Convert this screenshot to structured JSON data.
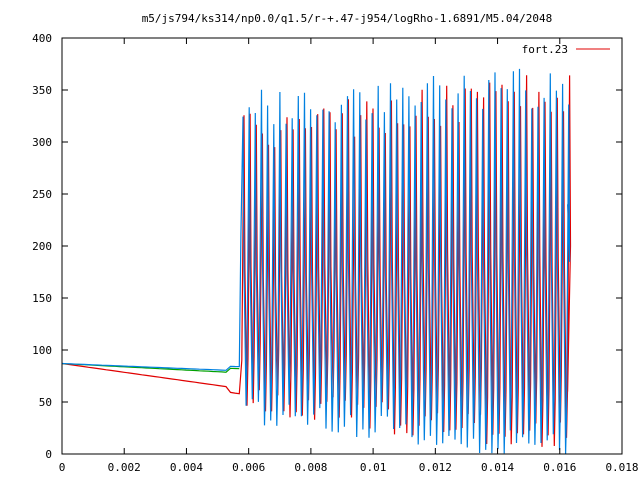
{
  "chart_data": {
    "type": "line",
    "title": "m5/js794/ks314/np0.0/q1.5/r-+.47-j954/logRho-1.6891/M5.04/2048",
    "xlabel": "",
    "ylabel": "",
    "xlim": [
      0,
      0.018
    ],
    "ylim": [
      0,
      400
    ],
    "x_ticks": [
      "0",
      "0.002",
      "0.004",
      "0.006",
      "0.008",
      "0.01",
      "0.012",
      "0.014",
      "0.016",
      "0.018"
    ],
    "x_tick_values": [
      0,
      0.002,
      0.004,
      0.006,
      0.008,
      0.01,
      0.012,
      0.014,
      0.016,
      0.018
    ],
    "y_ticks": [
      "0",
      "50",
      "100",
      "150",
      "200",
      "250",
      "300",
      "350",
      "400"
    ],
    "y_tick_values": [
      0,
      50,
      100,
      150,
      200,
      250,
      300,
      350,
      400
    ],
    "grid": false,
    "legend_position": "top-right",
    "legend": [
      {
        "label": "fort.23",
        "color": "#e00000"
      }
    ],
    "series": [
      {
        "name": "fort.23",
        "color": "#e00000",
        "steady": {
          "x": [
            0,
            0.0057
          ],
          "y": [
            87,
            63
          ]
        },
        "oscillation": {
          "x_start": 0.00575,
          "x_end": 0.01625,
          "period": 0.000395,
          "max_y": [
            310,
            350
          ],
          "min_y": [
            50,
            15
          ]
        }
      },
      {
        "name": "",
        "color": "#00a000",
        "steady": {
          "x": [
            0,
            0.0057
          ],
          "y": [
            87,
            78
          ]
        }
      },
      {
        "name": "",
        "color": "#0080e0",
        "steady": {
          "x": [
            0,
            0.0057
          ],
          "y": [
            87,
            80
          ]
        },
        "oscillation": {
          "x_start": 0.00575,
          "x_end": 0.01625,
          "period": 0.000395,
          "max_y": [
            330,
            355
          ],
          "min_y": [
            40,
            5
          ]
        }
      }
    ]
  }
}
